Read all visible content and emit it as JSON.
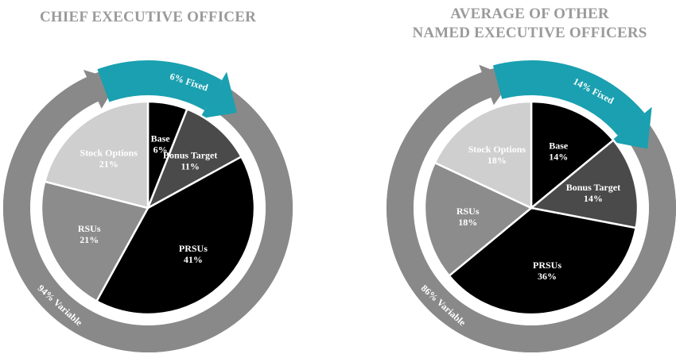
{
  "chart_data": [
    {
      "type": "pie",
      "title": "CHIEF EXECUTIVE OFFICER",
      "slices": [
        {
          "label": "Base",
          "value": 6,
          "value_text": "6%",
          "color": "#000000",
          "text_color": "#ffffff"
        },
        {
          "label": "Bonus Target",
          "value": 11,
          "value_text": "11%",
          "color": "#4a4a4a",
          "text_color": "#ffffff"
        },
        {
          "label": "PRSUs",
          "value": 41,
          "value_text": "41%",
          "color": "#000000",
          "text_color": "#ffffff"
        },
        {
          "label": "RSUs",
          "value": 21,
          "value_text": "21%",
          "color": "#8c8c8c",
          "text_color": "#ffffff"
        },
        {
          "label": "Stock Options",
          "value": 21,
          "value_text": "21%",
          "color": "#cfcfcf",
          "text_color": "#ffffff"
        }
      ],
      "fixed_label": "6% Fixed",
      "fixed_value": 6,
      "variable_label": "94% Variable",
      "variable_value": 94,
      "fixed_color": "#1aa0b0",
      "variable_color": "#898989"
    },
    {
      "type": "pie",
      "title": "AVERAGE OF OTHER NAMED EXECUTIVE OFFICERS",
      "slices": [
        {
          "label": "Base",
          "value": 14,
          "value_text": "14%",
          "color": "#000000",
          "text_color": "#ffffff"
        },
        {
          "label": "Bonus Target",
          "value": 14,
          "value_text": "14%",
          "color": "#4a4a4a",
          "text_color": "#ffffff"
        },
        {
          "label": "PRSUs",
          "value": 36,
          "value_text": "36%",
          "color": "#000000",
          "text_color": "#ffffff"
        },
        {
          "label": "RSUs",
          "value": 18,
          "value_text": "18%",
          "color": "#8c8c8c",
          "text_color": "#ffffff"
        },
        {
          "label": "Stock Options",
          "value": 18,
          "value_text": "18%",
          "color": "#cfcfcf",
          "text_color": "#ffffff"
        }
      ],
      "fixed_label": "14% Fixed",
      "fixed_value": 14,
      "variable_label": "86% Variable",
      "variable_value": 86,
      "fixed_color": "#1aa0b0",
      "variable_color": "#898989"
    }
  ],
  "titles": {
    "left": "CHIEF EXECUTIVE OFFICER",
    "right_line1": "AVERAGE OF OTHER",
    "right_line2": "NAMED EXECUTIVE OFFICERS"
  }
}
